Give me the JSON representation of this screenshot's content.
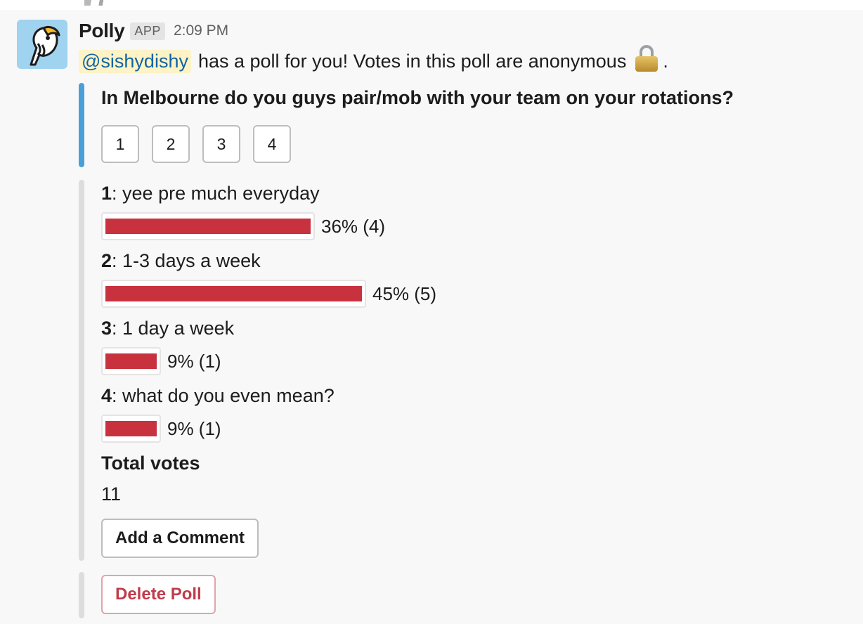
{
  "colors": {
    "accent_blue": "#4a9fd9",
    "bar_red": "#c8323f",
    "delete_red": "#c23b4b",
    "mention_bg": "#fdf3c6"
  },
  "message": {
    "sender": "Polly",
    "badge": "APP",
    "time": "2:09 PM",
    "avatar_icon": "parrot-icon",
    "mention": "@sishydishy",
    "intro_text": "has a poll for you! Votes in this poll are anonymous",
    "intro_emoji": "lock-icon",
    "intro_end": "."
  },
  "poll": {
    "question": "In Melbourne do you guys pair/mob with your team on your rotations?",
    "vote_buttons": [
      "1",
      "2",
      "3",
      "4"
    ],
    "options": [
      {
        "num": "1",
        "label": ": yee pre much everyday",
        "percent": 36,
        "result": "36% (4)"
      },
      {
        "num": "2",
        "label": ": 1-3 days a week",
        "percent": 45,
        "result": "45% (5)"
      },
      {
        "num": "3",
        "label": ": 1 day a week",
        "percent": 9,
        "result": "9% (1)"
      },
      {
        "num": "4",
        "label": ": what do you even mean?",
        "percent": 9,
        "result": "9% (1)"
      }
    ],
    "total_label": "Total votes",
    "total_value": "11",
    "comment_button": "Add a Comment",
    "delete_button": "Delete Poll"
  }
}
